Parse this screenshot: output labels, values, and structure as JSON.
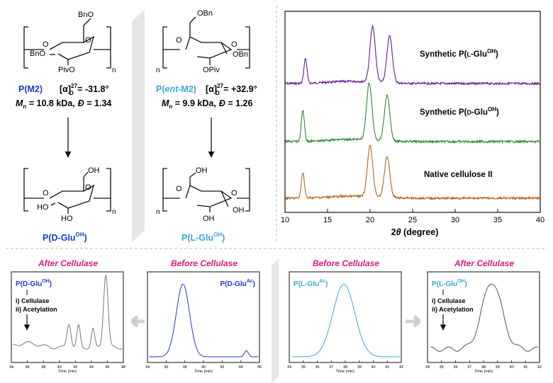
{
  "polymer_left": {
    "name_prefix": "P(",
    "name_core": "M2",
    "name_suffix": ")",
    "rotation_text": "[α]",
    "rotation_sup": "27",
    "rotation_sub": "D",
    "rotation_value": " = -31.8°",
    "mn_symbol": "M",
    "mn_sub": "n",
    "mn_value": " = 10.8 kDa,",
    "dispersity_symbol": "Đ",
    "dispersity_value": " = 1.34",
    "groups": {
      "top": "BnO",
      "left": "BnO",
      "bottom": "PivO",
      "ring_o": "O",
      "link_o_left": "O",
      "link_o_right": "O",
      "n": "n"
    },
    "color": "#1a3bd6"
  },
  "polymer_right": {
    "name_prefix": "P(",
    "name_core": "ent",
    "name_mid": "-M2",
    "name_suffix": ")",
    "rotation_text": "[α]",
    "rotation_sup": "27",
    "rotation_sub": "D",
    "rotation_value": " = +32.9°",
    "mn_symbol": "M",
    "mn_sub": "n",
    "mn_value": " = 9.9 kDa,",
    "dispersity_symbol": "Đ",
    "dispersity_value": " = 1.26",
    "groups": {
      "top": "OBn",
      "right": "OBn",
      "bottom": "OPiv",
      "ring_o": "O",
      "link_o_left": "O",
      "link_o_right": "O",
      "n": "n"
    },
    "color": "#3da7d9"
  },
  "product_left": {
    "name": "P(D-Glu",
    "sup": "OH",
    "close": ")",
    "groups": {
      "top": "OH",
      "left": "HO",
      "bottom": "HO",
      "ring_o": "O",
      "link_o_left": "O",
      "link_o_right": "O",
      "n": "n"
    }
  },
  "product_right": {
    "name": "P(L-Glu",
    "sup": "OH",
    "close": ")",
    "groups": {
      "top": "OH",
      "right": "OH",
      "bottom": "OH",
      "ring_o": "O",
      "link_o_left": "O",
      "link_o_right": "O",
      "n": "n"
    }
  },
  "xrd": {
    "xlabel_theta": "θ",
    "xlabel_rest": " (degree)",
    "xlabel_pre": "2",
    "traces": [
      {
        "label_a": "Synthetic P(",
        "label_b": "L",
        "label_c": "-Glu",
        "label_sup": "OH",
        "label_d": ")",
        "color": "#6a1b9a"
      },
      {
        "label_a": "Synthetic P(",
        "label_b": "D",
        "label_c": "-Glu",
        "label_sup": "OH",
        "label_d": ")",
        "color": "#2e8b2e"
      },
      {
        "label_a": "Native cellulose II",
        "label_b": "",
        "label_c": "",
        "label_sup": "",
        "label_d": "",
        "color": "#b5651d"
      }
    ]
  },
  "chart_data": {
    "type": "line",
    "title": "",
    "xlabel": "2θ (degree)",
    "ylabel": "",
    "xlim": [
      10,
      40
    ],
    "x_ticks": [
      "10",
      "15",
      "20",
      "25",
      "30",
      "35",
      "40"
    ],
    "series": [
      {
        "name": "Synthetic P(L-Glu^OH)",
        "peaks": [
          [
            12.4,
            0.45
          ],
          [
            20.3,
            1.0
          ],
          [
            22.3,
            0.85
          ]
        ],
        "baseline": 0.0
      },
      {
        "name": "Synthetic P(D-Glu^OH)",
        "peaks": [
          [
            12.1,
            0.55
          ],
          [
            19.9,
            1.0
          ],
          [
            22.0,
            0.8
          ]
        ],
        "baseline": 0.0
      },
      {
        "name": "Native cellulose II",
        "peaks": [
          [
            12.1,
            0.5
          ],
          [
            20.0,
            1.0
          ],
          [
            22.0,
            0.8
          ]
        ],
        "baseline": 0.0
      }
    ]
  },
  "gpc": {
    "panels": [
      {
        "header": "After Cellulase",
        "label": "P(D-Glu",
        "label_sup": "OH",
        "label_close": ")",
        "step1": "i) Cellulase",
        "step2": "ii) Acetylation",
        "xlabel": "Time (min)",
        "ticks": [
          "34",
          "36",
          "38",
          "40",
          "42",
          "44",
          "46",
          "48"
        ],
        "color": "#777777",
        "label_color": "#1a3bd6"
      },
      {
        "header": "Before Cellulase",
        "label": "P(D-Glu",
        "label_sup": "Ac",
        "label_close": ")",
        "xlabel": "Time (min)",
        "ticks": [
          "34",
          "36",
          "38",
          "40",
          "42",
          "44",
          "46"
        ],
        "color": "#1a3bd6",
        "label_color": "#1a3bd6"
      },
      {
        "header": "Before Cellulase",
        "label": "P(L-Glu",
        "label_sup": "Ac",
        "label_close": ")",
        "xlabel": "Time (min)",
        "ticks": [
          "34",
          "35",
          "36",
          "37",
          "38",
          "39",
          "40",
          "41",
          "42"
        ],
        "color": "#3da7d9",
        "label_color": "#3da7d9"
      },
      {
        "header": "After Cellulase",
        "label": "P(L-Glu",
        "label_sup": "OH",
        "label_close": ")",
        "step1": "i) Cellulase",
        "step2": "ii) Acetylation",
        "xlabel": "Time (min)",
        "ticks": [
          "34",
          "35",
          "36",
          "37",
          "38",
          "39",
          "40",
          "41",
          "42"
        ],
        "color": "#555555",
        "label_color": "#3da7d9"
      }
    ],
    "header_color": "#e0197d"
  }
}
